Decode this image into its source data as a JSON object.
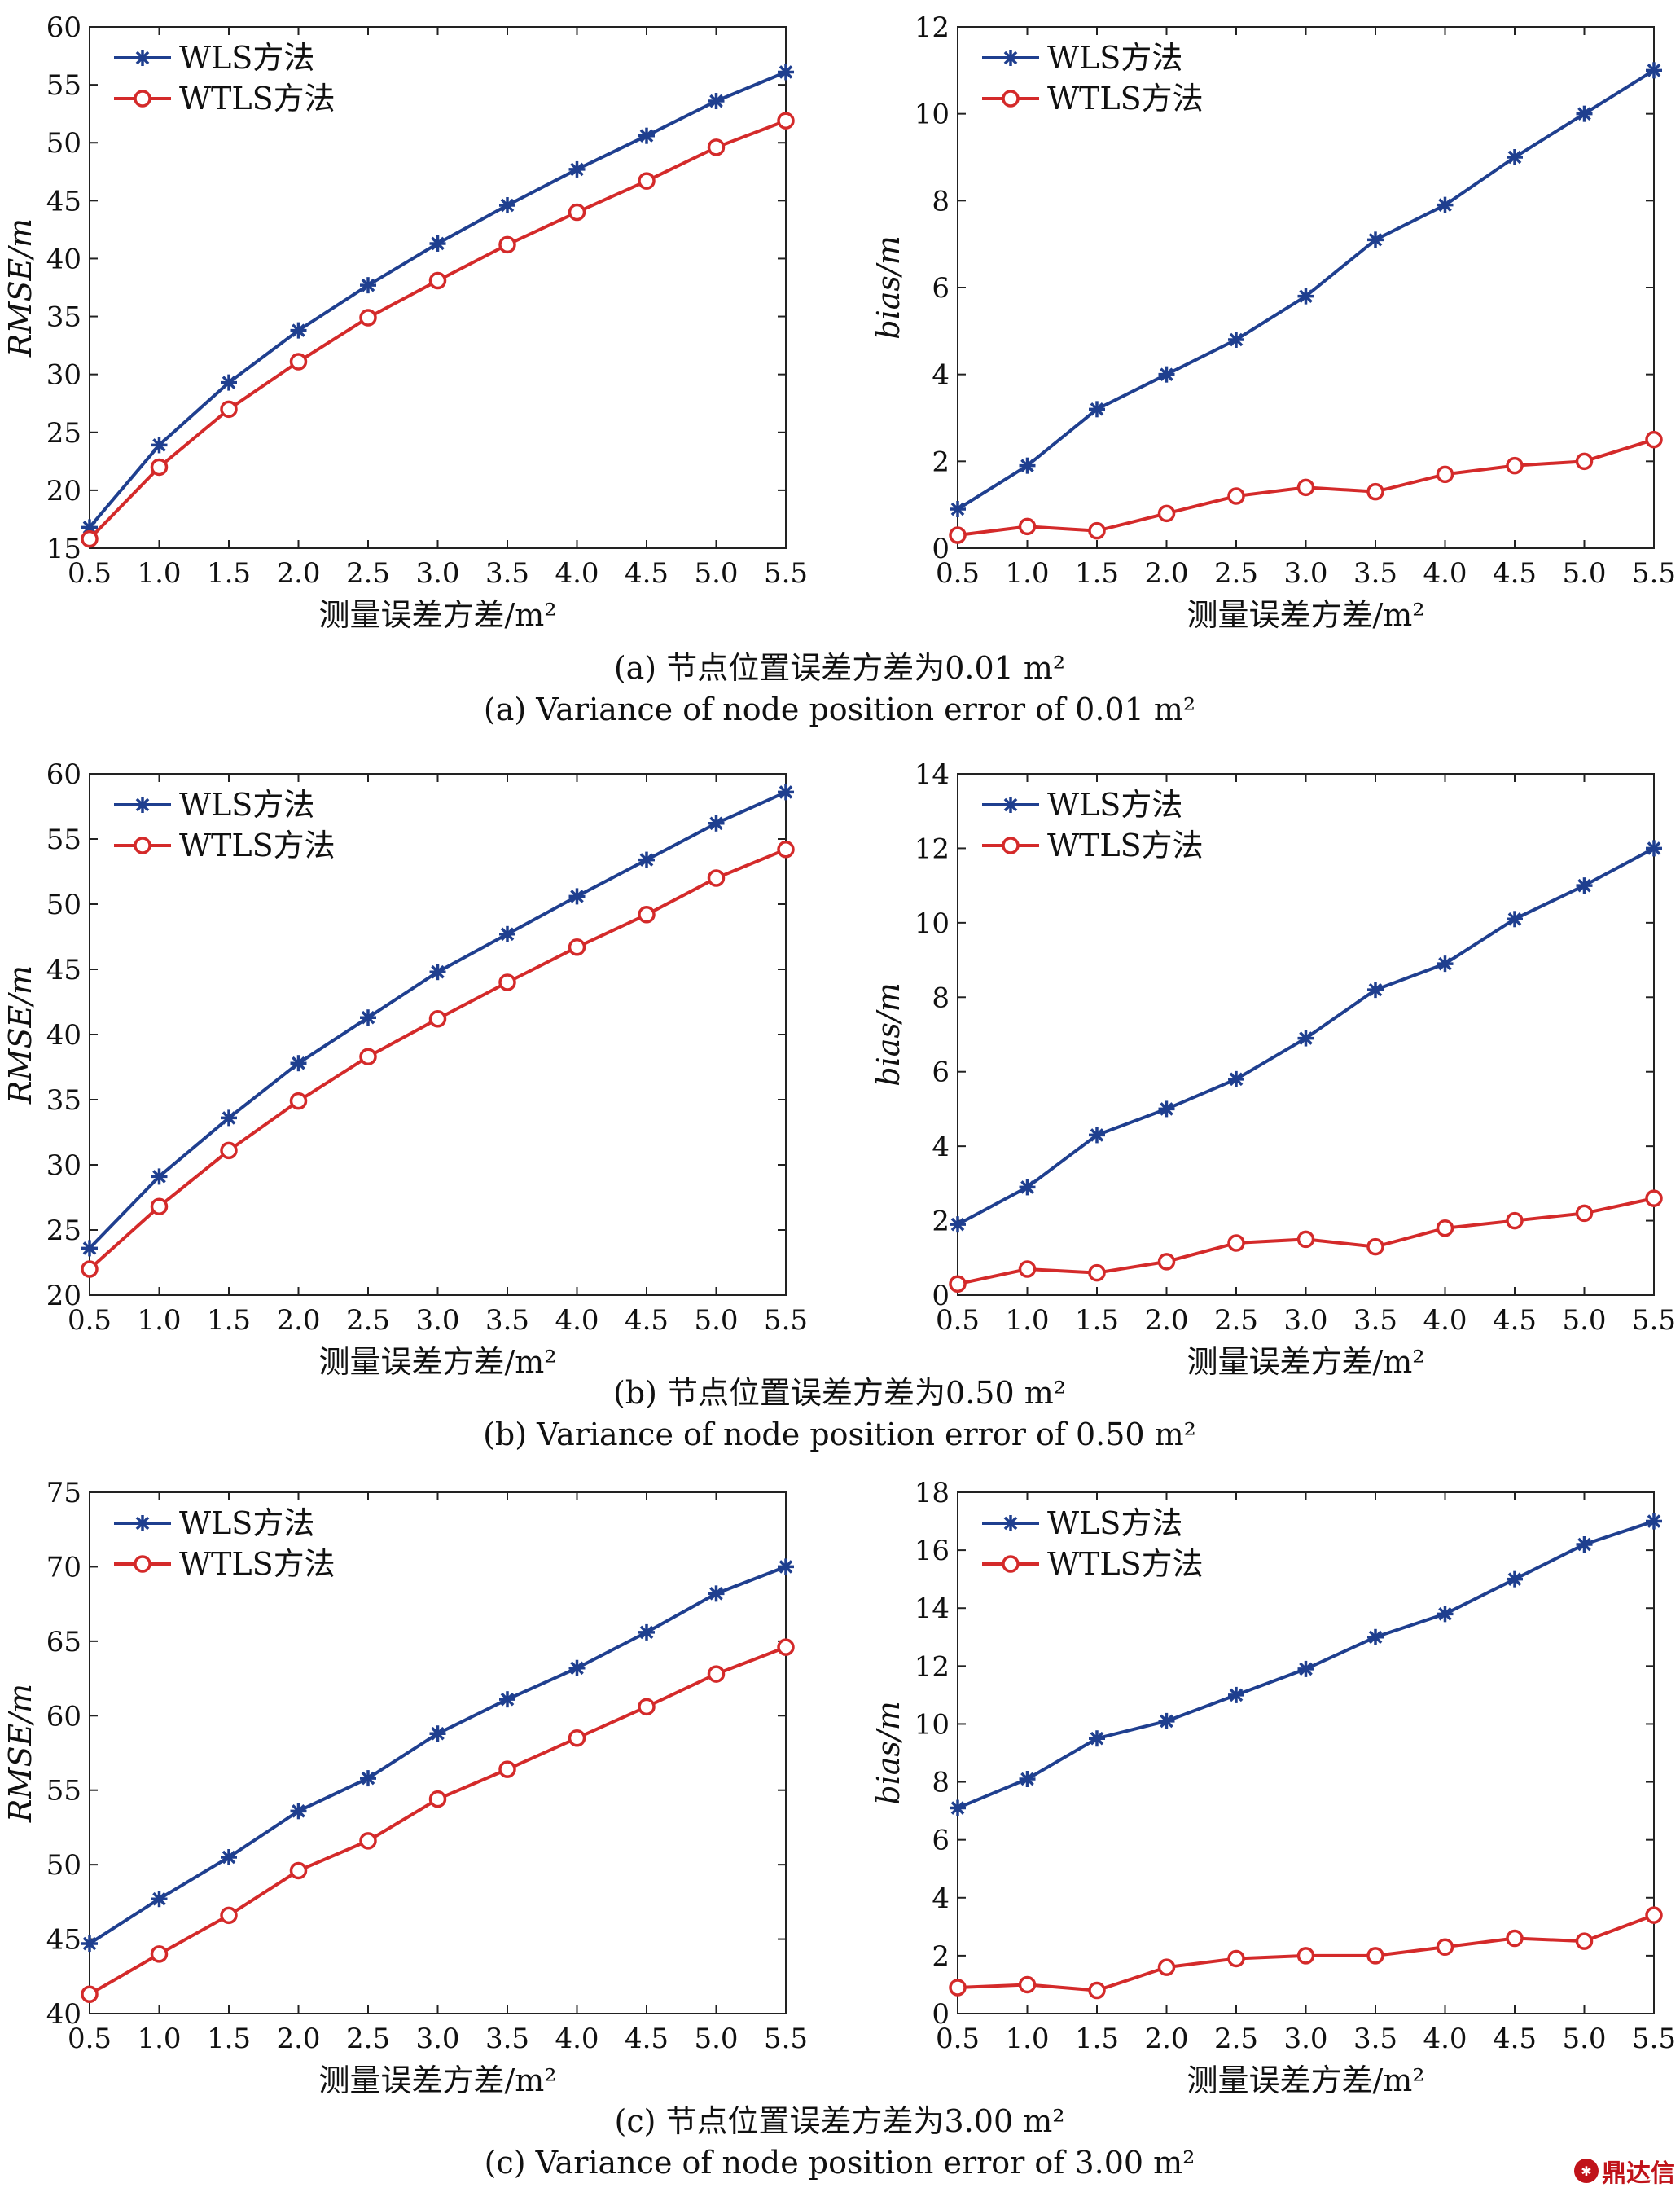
{
  "legend": {
    "wls": "WLS方法",
    "wtls": "WTLS方法"
  },
  "colors": {
    "wls": "#1f3f8f",
    "wtls": "#d42a2a"
  },
  "labels": {
    "xlabel": "测量误差方差/m²",
    "rmse_ylabel": "RMSE/m",
    "bias_ylabel": "bias/m"
  },
  "captions": {
    "a_cn": "(a) 节点位置误差方差为0.01 m²",
    "a_en": "(a) Variance of node position error of 0.01 m²",
    "b_cn": "(b) 节点位置误差方差为0.50  m²",
    "b_en": "(b) Variance of node position error of 0.50  m²",
    "c_cn": "(c) 节点位置误差方差为3.00  m²",
    "c_en": "(c) Variance of node position error of 3.00  m²"
  },
  "watermark": "鼎达信",
  "chart_data": [
    {
      "id": "a_rmse",
      "type": "line",
      "title": "",
      "xlabel": "测量误差方差/m²",
      "ylabel": "RMSE/m",
      "x": [
        0.5,
        1.0,
        1.5,
        2.0,
        2.5,
        3.0,
        3.5,
        4.0,
        4.5,
        5.0,
        5.5
      ],
      "xticks": [
        "0.5",
        "1.0",
        "1.5",
        "2.0",
        "2.5",
        "3.0",
        "3.5",
        "4.0",
        "4.5",
        "5.0",
        "5.5"
      ],
      "xlim": [
        0.5,
        5.5
      ],
      "ylim": [
        15,
        60
      ],
      "yticks": [
        15,
        20,
        25,
        30,
        35,
        40,
        45,
        50,
        55,
        60
      ],
      "legend": "top-left",
      "series": [
        {
          "name": "WLS方法",
          "values": [
            16.8,
            23.9,
            29.3,
            33.8,
            37.7,
            41.3,
            44.6,
            47.7,
            50.6,
            53.6,
            56.1
          ]
        },
        {
          "name": "WTLS方法",
          "values": [
            15.8,
            22.0,
            27.0,
            31.1,
            34.9,
            38.1,
            41.2,
            44.0,
            46.7,
            49.6,
            51.9
          ]
        }
      ]
    },
    {
      "id": "a_bias",
      "type": "line",
      "title": "",
      "xlabel": "测量误差方差/m²",
      "ylabel": "bias/m",
      "x": [
        0.5,
        1.0,
        1.5,
        2.0,
        2.5,
        3.0,
        3.5,
        4.0,
        4.5,
        5.0,
        5.5
      ],
      "xticks": [
        "0.5",
        "1.0",
        "1.5",
        "2.0",
        "2.5",
        "3.0",
        "3.5",
        "4.0",
        "4.5",
        "5.0",
        "5.5"
      ],
      "xlim": [
        0.5,
        5.5
      ],
      "ylim": [
        0,
        12
      ],
      "yticks": [
        0,
        2,
        4,
        6,
        8,
        10,
        12
      ],
      "legend": "top-left",
      "series": [
        {
          "name": "WLS方法",
          "values": [
            0.9,
            1.9,
            3.2,
            4.0,
            4.8,
            5.8,
            7.1,
            7.9,
            9.0,
            10.0,
            11.0
          ]
        },
        {
          "name": "WTLS方法",
          "values": [
            0.3,
            0.5,
            0.4,
            0.8,
            1.2,
            1.4,
            1.3,
            1.7,
            1.9,
            2.0,
            2.5
          ]
        }
      ]
    },
    {
      "id": "b_rmse",
      "type": "line",
      "title": "",
      "xlabel": "测量误差方差/m²",
      "ylabel": "RMSE/m",
      "x": [
        0.5,
        1.0,
        1.5,
        2.0,
        2.5,
        3.0,
        3.5,
        4.0,
        4.5,
        5.0,
        5.5
      ],
      "xticks": [
        "0.5",
        "1.0",
        "1.5",
        "2.0",
        "2.5",
        "3.0",
        "3.5",
        "4.0",
        "4.5",
        "5.0",
        "5.5"
      ],
      "xlim": [
        0.5,
        5.5
      ],
      "ylim": [
        20,
        60
      ],
      "yticks": [
        20,
        25,
        30,
        35,
        40,
        45,
        50,
        55,
        60
      ],
      "legend": "top-left",
      "series": [
        {
          "name": "WLS方法",
          "values": [
            23.6,
            29.1,
            33.6,
            37.8,
            41.3,
            44.8,
            47.7,
            50.6,
            53.4,
            56.2,
            58.6
          ]
        },
        {
          "name": "WTLS方法",
          "values": [
            22.0,
            26.8,
            31.1,
            34.9,
            38.3,
            41.2,
            44.0,
            46.7,
            49.2,
            52.0,
            54.2
          ]
        }
      ]
    },
    {
      "id": "b_bias",
      "type": "line",
      "title": "",
      "xlabel": "测量误差方差/m²",
      "ylabel": "bias/m",
      "x": [
        0.5,
        1.0,
        1.5,
        2.0,
        2.5,
        3.0,
        3.5,
        4.0,
        4.5,
        5.0,
        5.5
      ],
      "xticks": [
        "0.5",
        "1.0",
        "1.5",
        "2.0",
        "2.5",
        "3.0",
        "3.5",
        "4.0",
        "4.5",
        "5.0",
        "5.5"
      ],
      "xlim": [
        0.5,
        5.5
      ],
      "ylim": [
        0,
        14
      ],
      "yticks": [
        0,
        2,
        4,
        6,
        8,
        10,
        12,
        14
      ],
      "legend": "top-left",
      "series": [
        {
          "name": "WLS方法",
          "values": [
            1.9,
            2.9,
            4.3,
            5.0,
            5.8,
            6.9,
            8.2,
            8.9,
            10.1,
            11.0,
            12.0
          ]
        },
        {
          "name": "WTLS方法",
          "values": [
            0.3,
            0.7,
            0.6,
            0.9,
            1.4,
            1.5,
            1.3,
            1.8,
            2.0,
            2.2,
            2.6
          ]
        }
      ]
    },
    {
      "id": "c_rmse",
      "type": "line",
      "title": "",
      "xlabel": "测量误差方差/m²",
      "ylabel": "RMSE/m",
      "x": [
        0.5,
        1.0,
        1.5,
        2.0,
        2.5,
        3.0,
        3.5,
        4.0,
        4.5,
        5.0,
        5.5
      ],
      "xticks": [
        "0.5",
        "1.0",
        "1.5",
        "2.0",
        "2.5",
        "3.0",
        "3.5",
        "4.0",
        "4.5",
        "5.0",
        "5.5"
      ],
      "xlim": [
        0.5,
        5.5
      ],
      "ylim": [
        40,
        75
      ],
      "yticks": [
        40,
        45,
        50,
        55,
        60,
        65,
        70,
        75
      ],
      "legend": "top-left",
      "series": [
        {
          "name": "WLS方法",
          "values": [
            44.7,
            47.7,
            50.5,
            53.6,
            55.8,
            58.8,
            61.1,
            63.2,
            65.6,
            68.2,
            70.0
          ]
        },
        {
          "name": "WTLS方法",
          "values": [
            41.3,
            44.0,
            46.6,
            49.6,
            51.6,
            54.4,
            56.4,
            58.5,
            60.6,
            62.8,
            64.6
          ]
        }
      ]
    },
    {
      "id": "c_bias",
      "type": "line",
      "title": "",
      "xlabel": "测量误差方差/m²",
      "ylabel": "bias/m",
      "x": [
        0.5,
        1.0,
        1.5,
        2.0,
        2.5,
        3.0,
        3.5,
        4.0,
        4.5,
        5.0,
        5.5
      ],
      "xticks": [
        "0.5",
        "1.0",
        "1.5",
        "2.0",
        "2.5",
        "3.0",
        "3.5",
        "4.0",
        "4.5",
        "5.0",
        "5.5"
      ],
      "xlim": [
        0.5,
        5.5
      ],
      "ylim": [
        0,
        18
      ],
      "yticks": [
        0,
        2,
        4,
        6,
        8,
        10,
        12,
        14,
        16,
        18
      ],
      "legend": "top-left",
      "series": [
        {
          "name": "WLS方法",
          "values": [
            7.1,
            8.1,
            9.5,
            10.1,
            11.0,
            11.9,
            13.0,
            13.8,
            15.0,
            16.2,
            17.0
          ]
        },
        {
          "name": "WTLS方法",
          "values": [
            0.9,
            1.0,
            0.8,
            1.6,
            1.9,
            2.0,
            2.0,
            2.3,
            2.6,
            2.5,
            3.4
          ]
        }
      ]
    }
  ]
}
